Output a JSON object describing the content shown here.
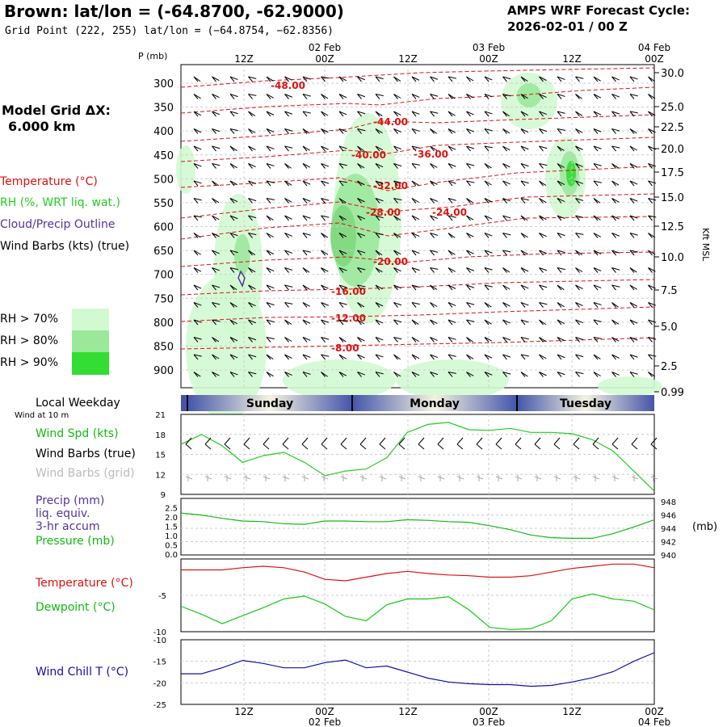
{
  "header": {
    "title": "Brown:  lat/lon = (-64.8700, -62.9000)",
    "subtitle": "Grid Point (222, 255) lat/lon = (−64.8754, −62.8356)",
    "cycle_line1": "AMPS WRF Forecast Cycle:",
    "cycle_line2": "2026-02-01 / 00  Z"
  },
  "sidebar": {
    "grid_line1": "Model Grid ΔX:",
    "grid_line2": "6.000 km",
    "legend_temperature": "Temperature (°C)",
    "legend_rh": "RH (%, WRT liq. wat.)",
    "legend_cloud": "Cloud/Precip Outline",
    "legend_wind": "Wind Barbs (kts) (true)",
    "rh_levels": [
      "RH > 70%",
      "RH > 80%",
      "RH > 90%"
    ],
    "rh_colors": [
      "#d2fad2",
      "#9be89b",
      "#33dd33"
    ],
    "local_weekday": "Local Weekday",
    "wind_at": "Wind at 10 m",
    "wind_spd": "Wind Spd (kts)",
    "wind_barbs_true": "Wind Barbs (true)",
    "wind_barbs_grid": "Wind Barbs (grid)",
    "precip1": "Precip (mm)",
    "precip2": "liq. equiv.",
    "precip3": "3-hr accum",
    "pressure": "Pressure (mb)",
    "temp": "Temperature (°C)",
    "dewpoint": "Dewpoint (°C)",
    "windchill": "Wind Chill T (°C)",
    "p_axis_label": "P (mb)",
    "kft_label": "Kft MSL",
    "mb_label": "(mb)"
  },
  "colors": {
    "temperature": "#dd1111",
    "rh_green": "#22cc22",
    "cloud": "#553399",
    "windchill": "#1111aa",
    "dewpoint": "#11cc11",
    "pressure": "#11bb11",
    "day_band_dark": "#4455aa",
    "day_band_light": "#f4f2e0"
  },
  "time_axis": {
    "top_dates": [
      "02 Feb",
      "03 Feb",
      "04 Feb"
    ],
    "hour_labels": [
      "12Z",
      "00Z",
      "12Z",
      "00Z",
      "12Z",
      "00Z"
    ],
    "bottom_dates": [
      "02 Feb",
      "03 Feb",
      "04 Feb"
    ],
    "weekdays": [
      "Sunday",
      "Monday",
      "Tuesday"
    ]
  },
  "chart_data": [
    {
      "type": "heatmap",
      "title": "",
      "ylabel": "P (mb)",
      "y2label": "Kft MSL",
      "pressure_ticks": [
        300,
        350,
        400,
        450,
        500,
        550,
        600,
        650,
        700,
        750,
        800,
        850,
        900
      ],
      "height_ticks": [
        "30.0",
        "25.0",
        "22.5",
        "20.0",
        "17.5",
        "15.0",
        "12.5",
        "10.0",
        "7.5",
        "5.0",
        "2.5",
        "0.99"
      ],
      "temperature_labels": [
        "-48.00",
        "-44.00",
        "-40.00",
        "-36.00",
        "-32.00",
        "-28.00",
        "-24.00",
        "-20.00",
        "-16.00",
        "-12.00",
        "-8.00"
      ],
      "x_hours": [
        6,
        66
      ],
      "grid": true
    },
    {
      "type": "line",
      "title": "",
      "ylabel": "Wind Spd (kts)",
      "yticks": [
        9,
        12,
        15,
        18,
        21
      ],
      "ylim": [
        9,
        21
      ],
      "x_hours": [
        3,
        6,
        9,
        12,
        15,
        18,
        21,
        24,
        27,
        30,
        33,
        36,
        39,
        42,
        45,
        48,
        51,
        54,
        57,
        60,
        63,
        66,
        69,
        72
      ],
      "series": [
        {
          "name": "Wind Spd (kts)",
          "values": [
            16.5,
            18.0,
            16.3,
            13.8,
            14.8,
            15.3,
            13.8,
            11.8,
            12.5,
            12.8,
            14.5,
            18.3,
            19.5,
            19.8,
            18.7,
            18.6,
            18.9,
            18.3,
            18.3,
            18.1,
            17.2,
            15.5,
            12.5,
            9.5
          ]
        }
      ]
    },
    {
      "type": "line",
      "title": "",
      "ylabel": "Pressure (mb)",
      "yticks": [
        "0.0",
        "0.5",
        "1.0",
        "1.5",
        "2.0",
        "2.5"
      ],
      "y2ticks": [
        940,
        942,
        944,
        946,
        948
      ],
      "ylim": [
        940,
        948.5
      ],
      "x_hours": [
        3,
        6,
        9,
        12,
        15,
        18,
        21,
        24,
        27,
        30,
        33,
        36,
        39,
        42,
        45,
        48,
        51,
        54,
        57,
        60,
        63,
        66,
        69,
        72
      ],
      "series": [
        {
          "name": "Pressure (mb)",
          "values": [
            946.3,
            946.0,
            945.5,
            945.1,
            945.0,
            944.7,
            944.6,
            945.1,
            945.1,
            945.0,
            945.0,
            945.3,
            945.2,
            945.0,
            944.9,
            944.4,
            943.8,
            943.0,
            942.6,
            942.5,
            942.5,
            943.2,
            944.2,
            945.3
          ]
        }
      ]
    },
    {
      "type": "line",
      "title": "",
      "ylabel": "Temperature (°C)",
      "yticks": [
        -10,
        -5
      ],
      "ylim": [
        -10,
        0
      ],
      "x_hours": [
        3,
        6,
        9,
        12,
        15,
        18,
        21,
        24,
        27,
        30,
        33,
        36,
        39,
        42,
        45,
        48,
        51,
        54,
        57,
        60,
        63,
        66,
        69,
        72
      ],
      "series": [
        {
          "name": "Temperature (°C)",
          "values": [
            -1.5,
            -1.5,
            -1.5,
            -1.2,
            -1.0,
            -1.2,
            -1.8,
            -2.8,
            -3.0,
            -2.5,
            -2.0,
            -1.7,
            -2.0,
            -2.2,
            -2.3,
            -2.5,
            -2.5,
            -2.3,
            -1.8,
            -1.3,
            -1.0,
            -0.7,
            -0.7,
            -1.2
          ]
        },
        {
          "name": "Dewpoint (°C)",
          "values": [
            -6.5,
            -7.6,
            -8.9,
            -7.8,
            -6.7,
            -5.5,
            -5.1,
            -6.2,
            -7.9,
            -8.5,
            -6.3,
            -5.5,
            -5.5,
            -5.2,
            -7.0,
            -9.4,
            -9.7,
            -9.6,
            -8.5,
            -5.5,
            -4.8,
            -5.5,
            -5.8,
            -7.0
          ]
        }
      ]
    },
    {
      "type": "line",
      "title": "",
      "ylabel": "Wind Chill T (°C)",
      "yticks": [
        -25,
        -20,
        -15,
        -10
      ],
      "ylim": [
        -25,
        -10
      ],
      "x_hours": [
        3,
        6,
        9,
        12,
        15,
        18,
        21,
        24,
        27,
        30,
        33,
        36,
        39,
        42,
        45,
        48,
        51,
        54,
        57,
        60,
        63,
        66,
        69,
        72
      ],
      "series": [
        {
          "name": "Wind Chill T (°C)",
          "values": [
            -17.9,
            -17.9,
            -16.5,
            -14.8,
            -15.5,
            -16.5,
            -16.5,
            -15.3,
            -14.7,
            -16.5,
            -16.1,
            -17.5,
            -18.9,
            -19.8,
            -20.2,
            -20.4,
            -20.4,
            -20.8,
            -20.6,
            -19.8,
            -18.8,
            -17.4,
            -15.0,
            -13.0
          ]
        }
      ]
    }
  ]
}
